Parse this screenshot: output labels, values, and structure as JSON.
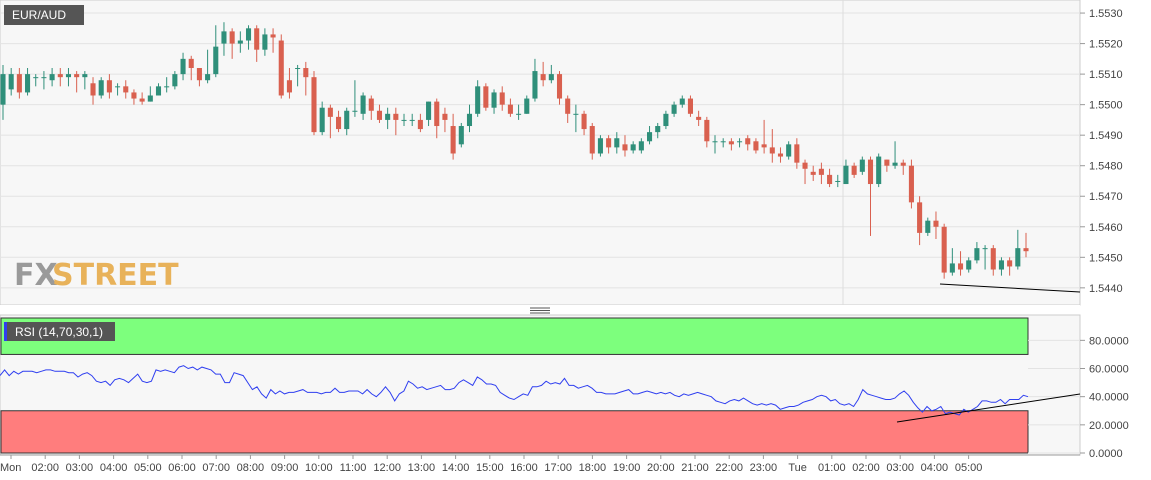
{
  "price_panel": {
    "symbol": "EUR/AUD"
  },
  "rsi_panel": {
    "label": "RSI (14,70,30,1)"
  },
  "watermark": {
    "part1": "FX",
    "part2": "STREET"
  },
  "colors": {
    "up": "#2f8f7a",
    "down": "#d9604f",
    "rsi_line": "#2f3ff0",
    "overbought_fill": "#7dff7d",
    "oversold_fill": "#ff7d7d",
    "watermark_fx": "#9a9a9a",
    "watermark_street": "#e8b25a",
    "label_bg": "#555555"
  },
  "chart_data": [
    {
      "type": "candlestick",
      "title": "EUR/AUD",
      "ylim": [
        1.5437,
        1.5531
      ],
      "y_ticks": [
        "1.5440",
        "1.5450",
        "1.5460",
        "1.5470",
        "1.5480",
        "1.5490",
        "1.5500",
        "1.5510",
        "1.5520",
        "1.5530"
      ],
      "x_ticks": [
        "Mon",
        "02:00",
        "03:00",
        "04:00",
        "05:00",
        "06:00",
        "07:00",
        "08:00",
        "09:00",
        "10:00",
        "11:00",
        "12:00",
        "13:00",
        "14:00",
        "15:00",
        "16:00",
        "17:00",
        "18:00",
        "19:00",
        "20:00",
        "21:00",
        "22:00",
        "23:00",
        "Tue",
        "01:00",
        "02:00",
        "03:00",
        "04:00",
        "05:00"
      ],
      "candles": [
        [
          1.55,
          1.551,
          1.5495,
          1.5513
        ],
        [
          1.5505,
          1.551,
          1.5503,
          1.5512
        ],
        [
          1.551,
          1.5504,
          1.5502,
          1.5512
        ],
        [
          1.5504,
          1.551,
          1.5503,
          1.5512
        ],
        [
          1.5509,
          1.5509,
          1.5506,
          1.551
        ],
        [
          1.5509,
          1.5509,
          1.5505,
          1.5511
        ],
        [
          1.5508,
          1.551,
          1.5506,
          1.5512
        ],
        [
          1.551,
          1.5509,
          1.5506,
          1.5512
        ],
        [
          1.5509,
          1.551,
          1.5506,
          1.5512
        ],
        [
          1.551,
          1.5509,
          1.5504,
          1.5511
        ],
        [
          1.5509,
          1.551,
          1.5505,
          1.5511
        ],
        [
          1.5507,
          1.5503,
          1.55,
          1.5509
        ],
        [
          1.5503,
          1.5508,
          1.5502,
          1.5509
        ],
        [
          1.5508,
          1.5504,
          1.5502,
          1.551
        ],
        [
          1.5506,
          1.5506,
          1.5503,
          1.5507
        ],
        [
          1.5506,
          1.5504,
          1.5502,
          1.5508
        ],
        [
          1.5504,
          1.5502,
          1.55,
          1.5505
        ],
        [
          1.5502,
          1.5501,
          1.55,
          1.5504
        ],
        [
          1.5501,
          1.5503,
          1.5501,
          1.5506
        ],
        [
          1.5503,
          1.5506,
          1.5503,
          1.5507
        ],
        [
          1.5506,
          1.5506,
          1.5504,
          1.5509
        ],
        [
          1.5506,
          1.551,
          1.5505,
          1.5511
        ],
        [
          1.551,
          1.5515,
          1.5508,
          1.5517
        ],
        [
          1.5515,
          1.5512,
          1.5508,
          1.5516
        ],
        [
          1.5512,
          1.5508,
          1.5506,
          1.5512
        ],
        [
          1.5508,
          1.551,
          1.5507,
          1.5518
        ],
        [
          1.551,
          1.5519,
          1.5509,
          1.5526
        ],
        [
          1.552,
          1.5524,
          1.5516,
          1.5527
        ],
        [
          1.5524,
          1.552,
          1.5515,
          1.5525
        ],
        [
          1.552,
          1.5521,
          1.5517,
          1.5524
        ],
        [
          1.5521,
          1.5525,
          1.5518,
          1.5526
        ],
        [
          1.5525,
          1.5518,
          1.5514,
          1.5526
        ],
        [
          1.5518,
          1.5523,
          1.5516,
          1.5525
        ],
        [
          1.5523,
          1.5522,
          1.5517,
          1.5525
        ],
        [
          1.5521,
          1.5503,
          1.5502,
          1.5523
        ],
        [
          1.5508,
          1.5504,
          1.5502,
          1.5512
        ],
        [
          1.5512,
          1.5512,
          1.5506,
          1.5513
        ],
        [
          1.5512,
          1.5509,
          1.5503,
          1.5514
        ],
        [
          1.5509,
          1.5491,
          1.549,
          1.5511
        ],
        [
          1.5491,
          1.5499,
          1.549,
          1.5501
        ],
        [
          1.5499,
          1.5496,
          1.5489,
          1.55
        ],
        [
          1.5496,
          1.5492,
          1.5491,
          1.5498
        ],
        [
          1.5492,
          1.5498,
          1.549,
          1.5499
        ],
        [
          1.5498,
          1.5498,
          1.5496,
          1.5508
        ],
        [
          1.5497,
          1.5503,
          1.5495,
          1.5504
        ],
        [
          1.5502,
          1.5498,
          1.5495,
          1.5503
        ],
        [
          1.5498,
          1.5495,
          1.5494,
          1.55
        ],
        [
          1.5495,
          1.5497,
          1.5492,
          1.5499
        ],
        [
          1.5497,
          1.5495,
          1.549,
          1.5499
        ],
        [
          1.5495,
          1.5495,
          1.5493,
          1.5497
        ],
        [
          1.5495,
          1.5495,
          1.5493,
          1.5497
        ],
        [
          1.5495,
          1.5492,
          1.5491,
          1.5497
        ],
        [
          1.5495,
          1.5501,
          1.5493,
          1.5501
        ],
        [
          1.5501,
          1.5493,
          1.5489,
          1.5502
        ],
        [
          1.5497,
          1.5495,
          1.5491,
          1.5499
        ],
        [
          1.5493,
          1.5484,
          1.5482,
          1.5497
        ],
        [
          1.5487,
          1.5493,
          1.5486,
          1.5494
        ],
        [
          1.5493,
          1.5497,
          1.5491,
          1.55
        ],
        [
          1.5497,
          1.5506,
          1.5496,
          1.5508
        ],
        [
          1.5506,
          1.5499,
          1.5498,
          1.5507
        ],
        [
          1.5499,
          1.5504,
          1.5497,
          1.5505
        ],
        [
          1.5504,
          1.55,
          1.5498,
          1.5506
        ],
        [
          1.55,
          1.5497,
          1.5496,
          1.5502
        ],
        [
          1.5497,
          1.5497,
          1.5495,
          1.55
        ],
        [
          1.5497,
          1.5502,
          1.5497,
          1.5503
        ],
        [
          1.5502,
          1.5511,
          1.5501,
          1.5515
        ],
        [
          1.551,
          1.5508,
          1.5506,
          1.5514
        ],
        [
          1.5508,
          1.551,
          1.5507,
          1.5513
        ],
        [
          1.551,
          1.5502,
          1.55,
          1.5511
        ],
        [
          1.5502,
          1.5497,
          1.5494,
          1.5503
        ],
        [
          1.5497,
          1.5497,
          1.5491,
          1.55
        ],
        [
          1.5497,
          1.5492,
          1.549,
          1.5498
        ],
        [
          1.5493,
          1.5484,
          1.5482,
          1.5494
        ],
        [
          1.5484,
          1.5489,
          1.5483,
          1.549
        ],
        [
          1.5489,
          1.5486,
          1.5484,
          1.549
        ],
        [
          1.5486,
          1.5489,
          1.5484,
          1.5491
        ],
        [
          1.5487,
          1.5485,
          1.5483,
          1.549
        ],
        [
          1.5485,
          1.5487,
          1.5484,
          1.5488
        ],
        [
          1.5485,
          1.5488,
          1.5484,
          1.5489
        ],
        [
          1.5488,
          1.5491,
          1.5487,
          1.5493
        ],
        [
          1.5491,
          1.5493,
          1.5489,
          1.5494
        ],
        [
          1.5493,
          1.5497,
          1.5492,
          1.5498
        ],
        [
          1.5497,
          1.55,
          1.5496,
          1.5501
        ],
        [
          1.55,
          1.5502,
          1.5499,
          1.5503
        ],
        [
          1.5502,
          1.5497,
          1.5496,
          1.5503
        ],
        [
          1.5496,
          1.5495,
          1.5493,
          1.5498
        ],
        [
          1.5495,
          1.5488,
          1.5486,
          1.5496
        ],
        [
          1.5488,
          1.5488,
          1.5484,
          1.549
        ],
        [
          1.5488,
          1.5488,
          1.5486,
          1.5489
        ],
        [
          1.5488,
          1.5487,
          1.5485,
          1.5489
        ],
        [
          1.5488,
          1.5488,
          1.5486,
          1.5489
        ],
        [
          1.5489,
          1.5487,
          1.5485,
          1.549
        ],
        [
          1.5488,
          1.5485,
          1.5484,
          1.5489
        ],
        [
          1.5487,
          1.5486,
          1.5484,
          1.5495
        ],
        [
          1.5486,
          1.5484,
          1.5481,
          1.5492
        ],
        [
          1.5484,
          1.5483,
          1.5481,
          1.5486
        ],
        [
          1.5483,
          1.5487,
          1.5482,
          1.5488
        ],
        [
          1.5487,
          1.5481,
          1.5479,
          1.5489
        ],
        [
          1.5481,
          1.5479,
          1.5474,
          1.5482
        ],
        [
          1.5478,
          1.5477,
          1.5475,
          1.548
        ],
        [
          1.5479,
          1.5477,
          1.5474,
          1.5481
        ],
        [
          1.5477,
          1.5474,
          1.5473,
          1.5479
        ],
        [
          1.5475,
          1.5475,
          1.5473,
          1.5477
        ],
        [
          1.5474,
          1.548,
          1.5474,
          1.5482
        ],
        [
          1.548,
          1.5477,
          1.5476,
          1.5481
        ],
        [
          1.5478,
          1.5482,
          1.5477,
          1.5483
        ],
        [
          1.5482,
          1.5474,
          1.5457,
          1.5483
        ],
        [
          1.5474,
          1.5483,
          1.5473,
          1.5484
        ],
        [
          1.5482,
          1.548,
          1.5478,
          1.5482
        ],
        [
          1.548,
          1.5481,
          1.5479,
          1.5488
        ],
        [
          1.5481,
          1.548,
          1.5477,
          1.5482
        ],
        [
          1.548,
          1.5468,
          1.5466,
          1.5482
        ],
        [
          1.5468,
          1.5458,
          1.5454,
          1.547
        ],
        [
          1.5458,
          1.5462,
          1.5457,
          1.5463
        ],
        [
          1.5462,
          1.546,
          1.5456,
          1.5465
        ],
        [
          1.546,
          1.5445,
          1.5443,
          1.5461
        ],
        [
          1.5445,
          1.5448,
          1.5444,
          1.5453
        ],
        [
          1.5448,
          1.5446,
          1.5444,
          1.5452
        ],
        [
          1.5446,
          1.5449,
          1.5445,
          1.545
        ],
        [
          1.5449,
          1.5453,
          1.5448,
          1.5455
        ],
        [
          1.5453,
          1.5453,
          1.5446,
          1.5454
        ],
        [
          1.5453,
          1.5446,
          1.5444,
          1.5454
        ],
        [
          1.5446,
          1.5449,
          1.5444,
          1.545
        ],
        [
          1.5449,
          1.5447,
          1.5444,
          1.545
        ],
        [
          1.5447,
          1.5453,
          1.5446,
          1.5459
        ],
        [
          1.5453,
          1.5452,
          1.545,
          1.5458
        ]
      ]
    },
    {
      "type": "line",
      "title": "RSI (14,70,30,1)",
      "ylim": [
        0,
        98
      ],
      "y_ticks": [
        "0.0000",
        "20.0000",
        "40.0000",
        "60.0000",
        "80.0000"
      ],
      "overbought": 70,
      "oversold": 30,
      "values": [
        55,
        59,
        55,
        58,
        56,
        58,
        58,
        58,
        57,
        58,
        59,
        59,
        58,
        58,
        58,
        57,
        57,
        54,
        56,
        57,
        55,
        51,
        50,
        51,
        48,
        52,
        53,
        52,
        50,
        53,
        56,
        51,
        50,
        51,
        59,
        58,
        59,
        58,
        57,
        61,
        62,
        60,
        61,
        59,
        61,
        60,
        59,
        56,
        56,
        50,
        50,
        57,
        56,
        55,
        50,
        45,
        47,
        42,
        39,
        45,
        42,
        44,
        42,
        43,
        43,
        44,
        45,
        43,
        43,
        43,
        42,
        43,
        43,
        46,
        43,
        43,
        44,
        44,
        44,
        42,
        45,
        42,
        40,
        43,
        47,
        43,
        37,
        42,
        44,
        51,
        49,
        46,
        47,
        45,
        46,
        47,
        48,
        45,
        45,
        46,
        50,
        52,
        50,
        48,
        54,
        52,
        49,
        49,
        48,
        43,
        41,
        39,
        38,
        40,
        42,
        41,
        47,
        47,
        48,
        51,
        49,
        50,
        49,
        53,
        48,
        48,
        46,
        47,
        48,
        46,
        43,
        43,
        42,
        42,
        42,
        43,
        44,
        45,
        42,
        42,
        43,
        44,
        43,
        42,
        43,
        42,
        43,
        41,
        40,
        42,
        41,
        42,
        43,
        42,
        41,
        40,
        37,
        36,
        35,
        37,
        38,
        37,
        39,
        37,
        35,
        34,
        35,
        34,
        35,
        34,
        31,
        32,
        33,
        33,
        34,
        36,
        37,
        38,
        40,
        41,
        40,
        37,
        38,
        35,
        34,
        35,
        33,
        38,
        45,
        42,
        41,
        40,
        39,
        38,
        38,
        39,
        42,
        44,
        41,
        36,
        32,
        29,
        33,
        30,
        31,
        33,
        28,
        29,
        28,
        27,
        31,
        29,
        31,
        33,
        37,
        37,
        36,
        36,
        38,
        35,
        38,
        38,
        38,
        41,
        40
      ]
    }
  ]
}
